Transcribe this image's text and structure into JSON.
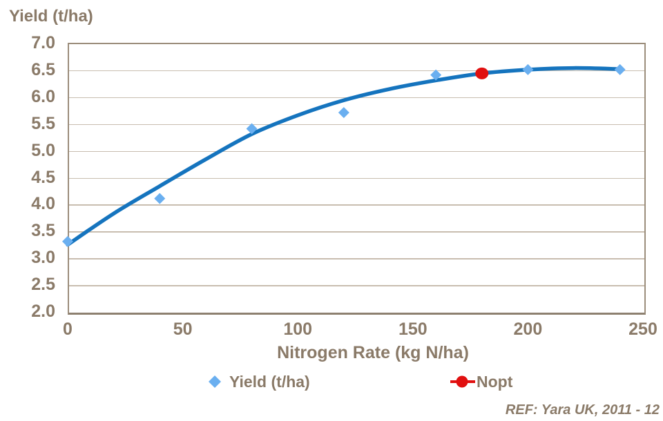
{
  "chart_data": {
    "type": "scatter",
    "title": "Yield (t/ha)",
    "xlabel": "Nitrogen Rate (kg N/ha)",
    "ylabel": "Yield (t/ha)",
    "xlim": [
      0,
      250
    ],
    "ylim": [
      2.0,
      7.0
    ],
    "x_ticks": [
      "0",
      "50",
      "100",
      "150",
      "200",
      "250"
    ],
    "y_ticks": [
      "7.0",
      "6.5",
      "6.0",
      "5.5",
      "5.0",
      "4.5",
      "4.0",
      "3.5",
      "3.0",
      "2.5",
      "2.0"
    ],
    "grid": "horizontal",
    "legend_position": "bottom",
    "series": [
      {
        "name": "Yield (t/ha)",
        "style": "scatter",
        "marker": "diamond",
        "color": "#6AAFF0",
        "points": [
          [
            0,
            3.3
          ],
          [
            40,
            4.1
          ],
          [
            80,
            5.4
          ],
          [
            120,
            5.7
          ],
          [
            160,
            6.4
          ],
          [
            200,
            6.5
          ],
          [
            240,
            6.5
          ]
        ]
      },
      {
        "name": "Nopt",
        "style": "point",
        "marker": "circle",
        "color": "#E11010",
        "points": [
          [
            180,
            6.43
          ]
        ]
      },
      {
        "name": "fitted-response-curve",
        "style": "line",
        "color": "#1574BE",
        "points": [
          [
            0,
            3.24
          ],
          [
            20,
            3.82
          ],
          [
            40,
            4.33
          ],
          [
            60,
            4.83
          ],
          [
            80,
            5.3
          ],
          [
            100,
            5.65
          ],
          [
            120,
            5.93
          ],
          [
            140,
            6.14
          ],
          [
            160,
            6.3
          ],
          [
            180,
            6.43
          ],
          [
            200,
            6.5
          ],
          [
            220,
            6.53
          ],
          [
            240,
            6.51
          ]
        ]
      }
    ],
    "footnote": "REF: Yara UK, 2011 - 12"
  },
  "labels": {
    "chart_title": "Yield (t/ha)",
    "x_axis_title": "Nitrogen Rate (kg N/ha)",
    "legend_yield": "Yield (t/ha)",
    "legend_nopt": "Nopt",
    "ref": "REF: Yara UK, 2011 - 12"
  },
  "colors": {
    "text": "#8A7A68",
    "gridline": "#C8BDAF",
    "axis_border": "#9B8D7B",
    "curve": "#1574BE",
    "yield_marker": "#6AAFF0",
    "nopt_marker": "#E11010"
  }
}
